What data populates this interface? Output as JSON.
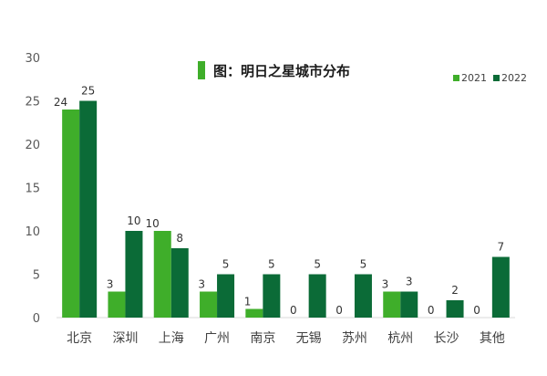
{
  "chart_data": {
    "type": "bar",
    "title": "图：明日之星城市分布",
    "xlabel": "",
    "ylabel": "",
    "ylim": [
      0,
      30
    ],
    "yticks": [
      0,
      5,
      10,
      15,
      20,
      25,
      30
    ],
    "grid": false,
    "legend_position": "top-right",
    "categories": [
      "北京",
      "深圳",
      "上海",
      "广州",
      "南京",
      "无锡",
      "苏州",
      "杭州",
      "长沙",
      "其他"
    ],
    "series": [
      {
        "name": "2021",
        "color": "#3fae2a",
        "values": [
          24,
          3,
          10,
          3,
          1,
          0,
          0,
          3,
          0,
          0
        ]
      },
      {
        "name": "2022",
        "color": "#0b6b37",
        "values": [
          25,
          10,
          8,
          5,
          5,
          5,
          5,
          3,
          2,
          7
        ]
      }
    ],
    "title_marker_color": "#3fae2a"
  }
}
